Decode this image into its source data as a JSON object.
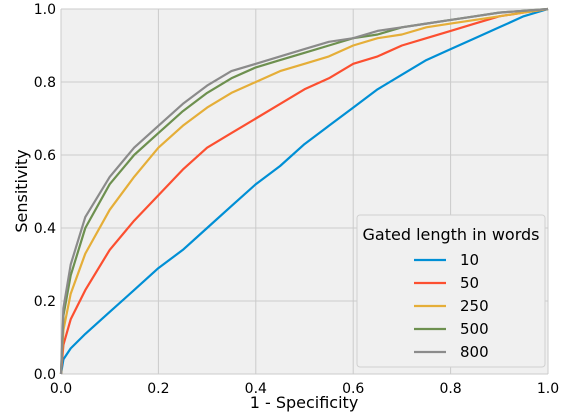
{
  "chart_data": {
    "type": "line",
    "xlabel": "1 - Specificity",
    "ylabel": "Sensitivity",
    "xlim": [
      0.0,
      1.0
    ],
    "ylim": [
      0.0,
      1.0
    ],
    "grid": true,
    "x_ticks": [
      "0.0",
      "0.2",
      "0.4",
      "0.6",
      "0.8",
      "1.0"
    ],
    "y_ticks": [
      "0.0",
      "0.2",
      "0.4",
      "0.6",
      "0.8",
      "1.0"
    ],
    "legend": {
      "title": "Gated length in words",
      "placement": "bottom-right"
    },
    "series": [
      {
        "name": "10",
        "color": "#008fd5",
        "points": [
          [
            0.0,
            0.0
          ],
          [
            0.005,
            0.04
          ],
          [
            0.02,
            0.07
          ],
          [
            0.05,
            0.11
          ],
          [
            0.1,
            0.17
          ],
          [
            0.15,
            0.23
          ],
          [
            0.2,
            0.29
          ],
          [
            0.25,
            0.34
          ],
          [
            0.3,
            0.4
          ],
          [
            0.35,
            0.46
          ],
          [
            0.4,
            0.52
          ],
          [
            0.45,
            0.57
          ],
          [
            0.5,
            0.63
          ],
          [
            0.55,
            0.68
          ],
          [
            0.6,
            0.73
          ],
          [
            0.65,
            0.78
          ],
          [
            0.7,
            0.82
          ],
          [
            0.75,
            0.86
          ],
          [
            0.8,
            0.89
          ],
          [
            0.85,
            0.92
          ],
          [
            0.9,
            0.95
          ],
          [
            0.95,
            0.98
          ],
          [
            1.0,
            1.0
          ]
        ]
      },
      {
        "name": "50",
        "color": "#fc4f30",
        "points": [
          [
            0.0,
            0.0
          ],
          [
            0.005,
            0.08
          ],
          [
            0.02,
            0.15
          ],
          [
            0.05,
            0.23
          ],
          [
            0.1,
            0.34
          ],
          [
            0.15,
            0.42
          ],
          [
            0.2,
            0.49
          ],
          [
            0.25,
            0.56
          ],
          [
            0.3,
            0.62
          ],
          [
            0.35,
            0.66
          ],
          [
            0.4,
            0.7
          ],
          [
            0.45,
            0.74
          ],
          [
            0.5,
            0.78
          ],
          [
            0.55,
            0.81
          ],
          [
            0.6,
            0.85
          ],
          [
            0.65,
            0.87
          ],
          [
            0.7,
            0.9
          ],
          [
            0.75,
            0.92
          ],
          [
            0.8,
            0.94
          ],
          [
            0.85,
            0.96
          ],
          [
            0.9,
            0.98
          ],
          [
            0.95,
            0.99
          ],
          [
            1.0,
            1.0
          ]
        ]
      },
      {
        "name": "250",
        "color": "#e5ae38",
        "points": [
          [
            0.0,
            0.0
          ],
          [
            0.005,
            0.12
          ],
          [
            0.02,
            0.22
          ],
          [
            0.05,
            0.33
          ],
          [
            0.1,
            0.45
          ],
          [
            0.15,
            0.54
          ],
          [
            0.2,
            0.62
          ],
          [
            0.25,
            0.68
          ],
          [
            0.3,
            0.73
          ],
          [
            0.35,
            0.77
          ],
          [
            0.4,
            0.8
          ],
          [
            0.45,
            0.83
          ],
          [
            0.5,
            0.85
          ],
          [
            0.55,
            0.87
          ],
          [
            0.6,
            0.9
          ],
          [
            0.65,
            0.92
          ],
          [
            0.7,
            0.93
          ],
          [
            0.75,
            0.95
          ],
          [
            0.8,
            0.96
          ],
          [
            0.85,
            0.97
          ],
          [
            0.9,
            0.98
          ],
          [
            0.95,
            0.99
          ],
          [
            1.0,
            1.0
          ]
        ]
      },
      {
        "name": "500",
        "color": "#6d904f",
        "points": [
          [
            0.0,
            0.0
          ],
          [
            0.005,
            0.16
          ],
          [
            0.02,
            0.27
          ],
          [
            0.05,
            0.4
          ],
          [
            0.1,
            0.52
          ],
          [
            0.15,
            0.6
          ],
          [
            0.2,
            0.66
          ],
          [
            0.25,
            0.72
          ],
          [
            0.3,
            0.77
          ],
          [
            0.35,
            0.81
          ],
          [
            0.4,
            0.84
          ],
          [
            0.45,
            0.86
          ],
          [
            0.5,
            0.88
          ],
          [
            0.55,
            0.9
          ],
          [
            0.6,
            0.92
          ],
          [
            0.65,
            0.93
          ],
          [
            0.7,
            0.95
          ],
          [
            0.75,
            0.96
          ],
          [
            0.8,
            0.97
          ],
          [
            0.85,
            0.98
          ],
          [
            0.9,
            0.99
          ],
          [
            0.95,
            0.995
          ],
          [
            1.0,
            1.0
          ]
        ]
      },
      {
        "name": "800",
        "color": "#8b8b8b",
        "points": [
          [
            0.0,
            0.0
          ],
          [
            0.005,
            0.18
          ],
          [
            0.02,
            0.3
          ],
          [
            0.05,
            0.43
          ],
          [
            0.1,
            0.54
          ],
          [
            0.15,
            0.62
          ],
          [
            0.2,
            0.68
          ],
          [
            0.25,
            0.74
          ],
          [
            0.3,
            0.79
          ],
          [
            0.35,
            0.83
          ],
          [
            0.4,
            0.85
          ],
          [
            0.45,
            0.87
          ],
          [
            0.5,
            0.89
          ],
          [
            0.55,
            0.91
          ],
          [
            0.6,
            0.92
          ],
          [
            0.65,
            0.94
          ],
          [
            0.7,
            0.95
          ],
          [
            0.75,
            0.96
          ],
          [
            0.8,
            0.97
          ],
          [
            0.85,
            0.98
          ],
          [
            0.9,
            0.99
          ],
          [
            0.95,
            0.995
          ],
          [
            1.0,
            1.0
          ]
        ]
      }
    ]
  }
}
